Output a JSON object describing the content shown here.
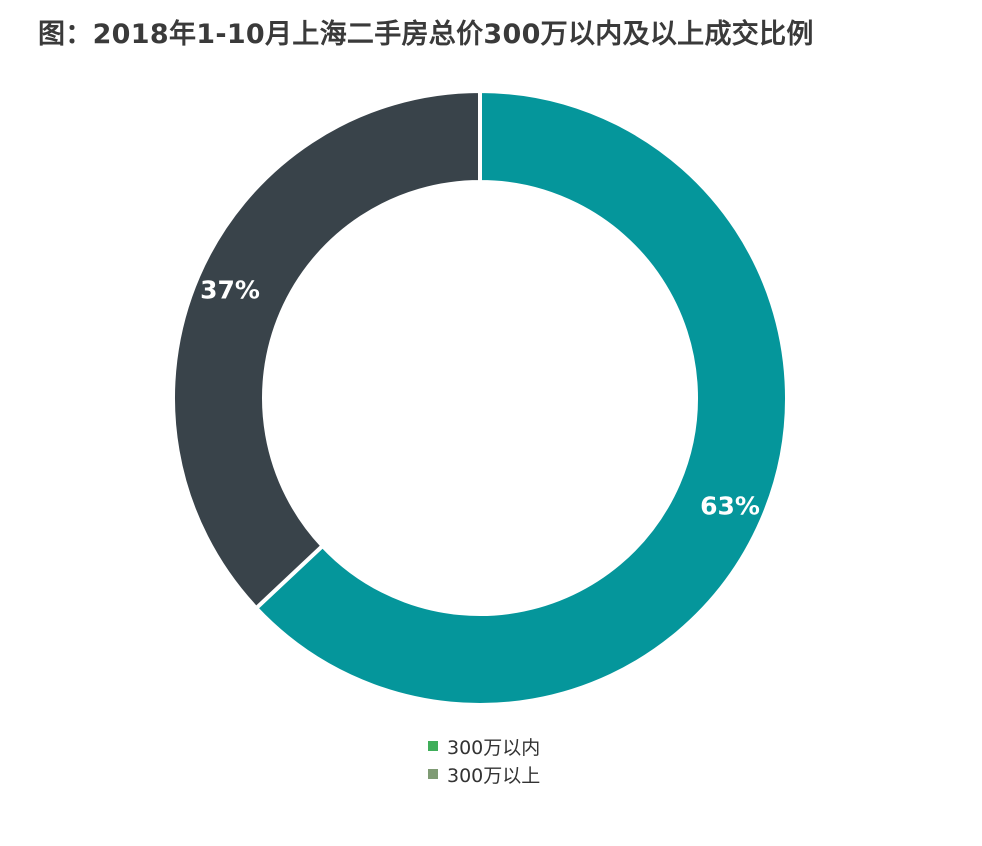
{
  "chart_data": {
    "type": "pie",
    "style": "donut",
    "title": "图：2018年1-10月上海二手房总价300万以内及以上成交比例",
    "categories": [
      "300万以内",
      "300万以上"
    ],
    "values": [
      63,
      37
    ],
    "unit": "%",
    "data_labels": [
      "63%",
      "37%"
    ],
    "series_colors": [
      "#05969b",
      "#39434a"
    ],
    "legend_colors": [
      "#3fae5a",
      "#7f9b74"
    ],
    "legend_position": "bottom"
  }
}
